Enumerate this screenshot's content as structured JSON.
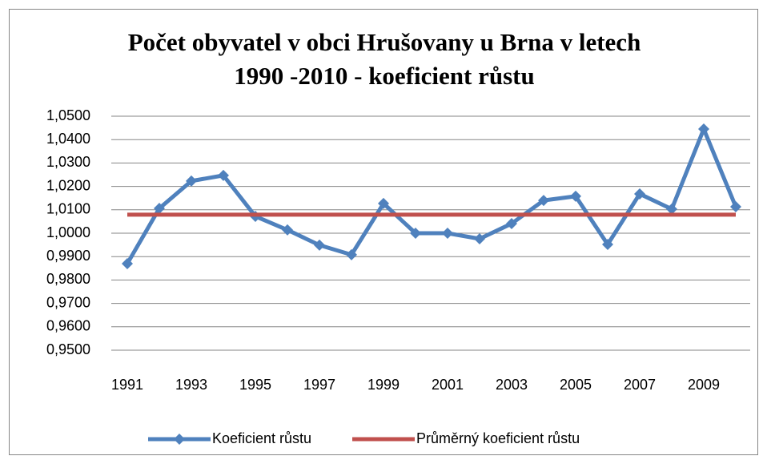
{
  "chart_data": {
    "type": "line",
    "title": [
      "Počet obyvatel v obci Hrušovany u Brna v letech",
      "1990 -2010 - koeficient růstu"
    ],
    "categories": [
      "1991",
      null,
      "1993",
      null,
      "1995",
      null,
      "1997",
      null,
      "1999",
      null,
      "2001",
      null,
      "2003",
      null,
      "2005",
      null,
      "2007",
      null,
      "2009",
      null
    ],
    "series": [
      {
        "name": "Koeficient růstu",
        "color": "#4f81bd",
        "marker": "diamond",
        "values": [
          0.987,
          1.0106,
          1.0223,
          1.0247,
          1.0072,
          1.0014,
          0.9949,
          0.9908,
          1.0127,
          1.0,
          1.0,
          0.9976,
          1.0041,
          1.014,
          1.0158,
          0.9952,
          1.0168,
          1.0103,
          1.0445,
          1.0113
        ]
      },
      {
        "name": "Průměrný koeficient růstu",
        "color": "#c0504d",
        "marker": "none",
        "values": [
          1.0079,
          1.0079,
          1.0079,
          1.0079,
          1.0079,
          1.0079,
          1.0079,
          1.0079,
          1.0079,
          1.0079,
          1.0079,
          1.0079,
          1.0079,
          1.0079,
          1.0079,
          1.0079,
          1.0079,
          1.0079,
          1.0079,
          1.0079
        ]
      }
    ],
    "ylim": [
      0.95,
      1.05
    ],
    "yticks": [
      {
        "value": 0.95,
        "label": "0,9500"
      },
      {
        "value": 0.96,
        "label": "0,9600"
      },
      {
        "value": 0.97,
        "label": "0,9700"
      },
      {
        "value": 0.98,
        "label": "0,9800"
      },
      {
        "value": 0.99,
        "label": "0,9900"
      },
      {
        "value": 1.0,
        "label": "1,0000"
      },
      {
        "value": 1.01,
        "label": "1,0100"
      },
      {
        "value": 1.02,
        "label": "1,0200"
      },
      {
        "value": 1.03,
        "label": "1,0300"
      },
      {
        "value": 1.04,
        "label": "1,0400"
      },
      {
        "value": 1.05,
        "label": "1,0500"
      }
    ],
    "grid": true,
    "legend": "bottom"
  }
}
